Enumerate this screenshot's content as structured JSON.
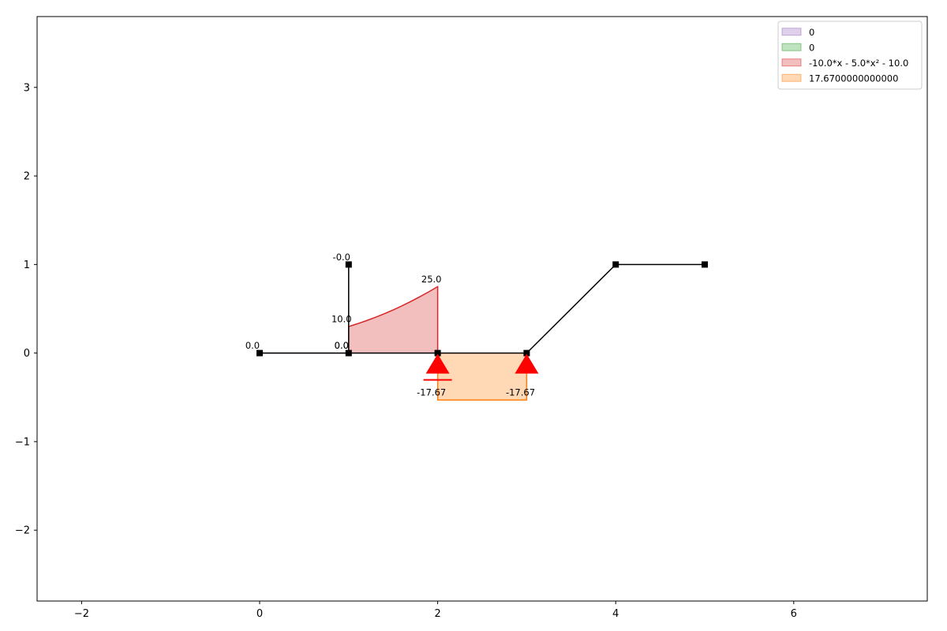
{
  "chart_data": {
    "type": "area",
    "title": "",
    "xlabel": "",
    "ylabel": "",
    "xlim": [
      -2.5,
      7.5
    ],
    "ylim": [
      -2.8,
      3.8
    ],
    "grid": false,
    "legend_position": "top-right",
    "x_ticks": [
      -2,
      0,
      2,
      4,
      6
    ],
    "y_ticks": [
      -2,
      -1,
      0,
      1,
      2,
      3
    ],
    "structure": {
      "color": "#000000",
      "members": [
        {
          "x": [
            0,
            1
          ],
          "y": [
            0,
            0
          ]
        },
        {
          "x": [
            1,
            1
          ],
          "y": [
            0,
            1
          ]
        },
        {
          "x": [
            1,
            2
          ],
          "y": [
            0,
            0
          ]
        },
        {
          "x": [
            2,
            3
          ],
          "y": [
            0,
            0
          ]
        },
        {
          "x": [
            3,
            4
          ],
          "y": [
            0,
            1
          ]
        },
        {
          "x": [
            4,
            5
          ],
          "y": [
            1,
            1
          ]
        }
      ],
      "nodes": [
        {
          "x": 0,
          "y": 0
        },
        {
          "x": 1,
          "y": 0
        },
        {
          "x": 1,
          "y": 1
        },
        {
          "x": 2,
          "y": 0
        },
        {
          "x": 3,
          "y": 0
        },
        {
          "x": 4,
          "y": 1
        },
        {
          "x": 5,
          "y": 1
        }
      ]
    },
    "supports": [
      {
        "x": 2,
        "y": 0,
        "kind": "roller",
        "color": "#ff0000"
      },
      {
        "x": 3,
        "y": 0,
        "kind": "pin",
        "color": "#ff0000"
      }
    ],
    "series": [
      {
        "name": "0",
        "color": "#9467bd",
        "member": {
          "start": [
            0,
            0
          ],
          "end": [
            1,
            0
          ]
        },
        "offsets": [
          [
            0,
            0
          ],
          [
            1,
            0
          ]
        ]
      },
      {
        "name": "0",
        "color": "#2ca02c",
        "member": {
          "start": [
            1,
            1
          ],
          "end": [
            1,
            0
          ]
        },
        "offsets": [
          [
            0,
            0
          ],
          [
            1,
            0
          ]
        ]
      },
      {
        "name": "-10.0*x - 5.0*x² - 10.0",
        "color": "#d62728",
        "member": {
          "start": [
            1,
            0
          ],
          "end": [
            2,
            0
          ]
        },
        "offsets": [
          [
            0,
            0.3
          ],
          [
            0.1,
            0.3315
          ],
          [
            0.2,
            0.366
          ],
          [
            0.3,
            0.4035
          ],
          [
            0.4,
            0.444
          ],
          [
            0.5,
            0.4875
          ],
          [
            0.6,
            0.534
          ],
          [
            0.7,
            0.5835
          ],
          [
            0.8,
            0.636
          ],
          [
            0.9,
            0.6915
          ],
          [
            1.0,
            0.75
          ]
        ]
      },
      {
        "name": "17.6700000000000",
        "color": "#ff7f0e",
        "member": {
          "start": [
            2,
            0
          ],
          "end": [
            3,
            0
          ]
        },
        "offsets": [
          [
            0,
            -0.53
          ],
          [
            1,
            -0.53
          ]
        ]
      }
    ],
    "annotations": [
      {
        "text": "0.0",
        "x": -0.08,
        "y": 0.05
      },
      {
        "text": "0.0",
        "x": 0.92,
        "y": 0.05
      },
      {
        "text": "-0.0",
        "x": 0.92,
        "y": 1.05
      },
      {
        "text": "0.0",
        "x": 0.92,
        "y": 0.05
      },
      {
        "text": "10.0",
        "x": 0.92,
        "y": 0.35
      },
      {
        "text": "25.0",
        "x": 1.93,
        "y": 0.8
      },
      {
        "text": "-17.67",
        "x": 1.93,
        "y": -0.48
      },
      {
        "text": "-17.67",
        "x": 2.93,
        "y": -0.48
      }
    ]
  }
}
